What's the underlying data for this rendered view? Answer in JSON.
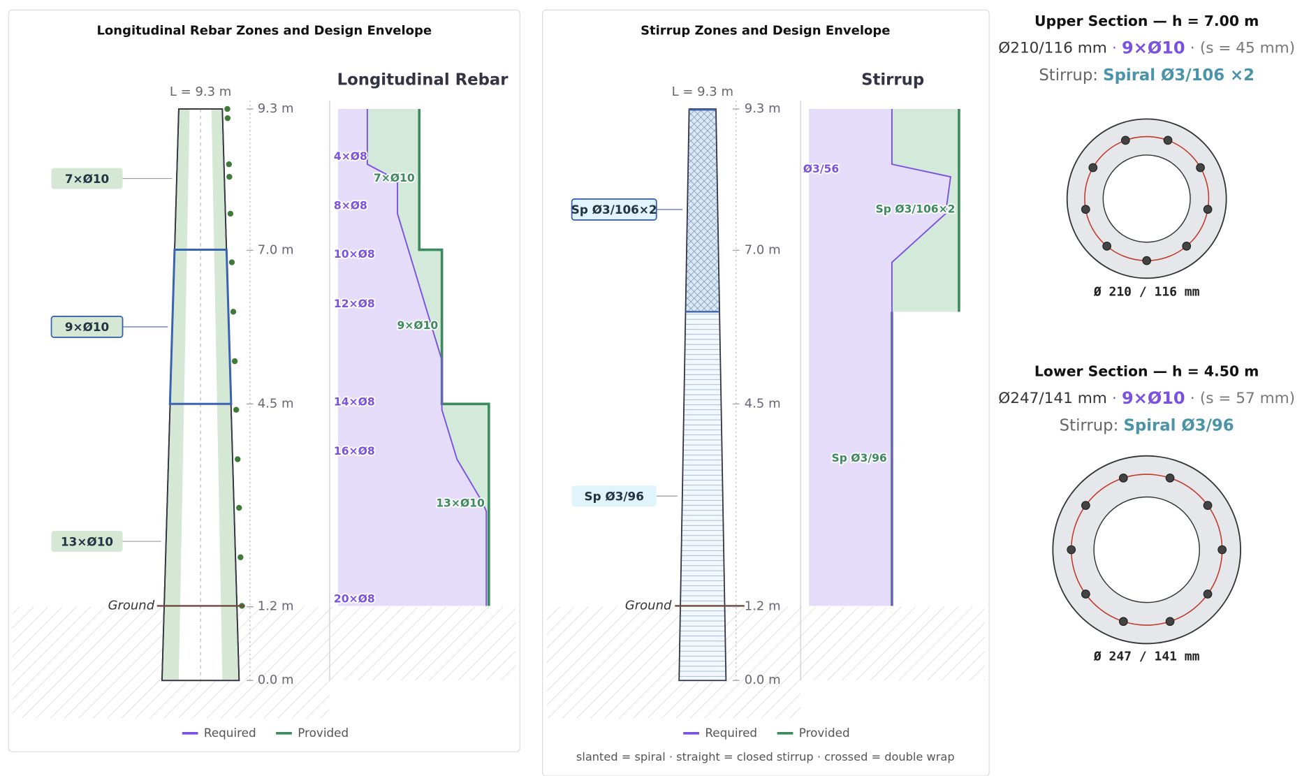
{
  "rebar_panel": {
    "title": "Longitudinal Rebar Zones and Design Envelope",
    "length_label": "L = 9.3 m",
    "height_ticks": [
      {
        "value": 9.3,
        "label": "9.3 m"
      },
      {
        "value": 7.0,
        "label": "7.0 m"
      },
      {
        "value": 4.5,
        "label": "4.5 m"
      },
      {
        "value": 1.2,
        "label": "1.2 m"
      },
      {
        "value": 0.0,
        "label": "0.0 m"
      }
    ],
    "zones": [
      "7×Ø10",
      "9×Ø10",
      "13×Ø10"
    ],
    "ground": "Ground",
    "envelope": {
      "title": "Longitudinal Rebar",
      "required_labels": [
        "4×Ø8",
        "8×Ø8",
        "10×Ø8",
        "12×Ø8",
        "14×Ø8",
        "16×Ø8",
        "20×Ø8"
      ],
      "provided_labels": [
        "7×Ø10",
        "9×Ø10",
        "13×Ø10"
      ]
    },
    "legend": [
      "Required",
      "Provided"
    ]
  },
  "stirrup_panel": {
    "title": "Stirrup Zones and Design Envelope",
    "length_label": "L = 9.3 m",
    "height_ticks": [
      {
        "value": 9.3,
        "label": "9.3 m"
      },
      {
        "value": 7.0,
        "label": "7.0 m"
      },
      {
        "value": 4.5,
        "label": "4.5 m"
      },
      {
        "value": 1.2,
        "label": "1.2 m"
      },
      {
        "value": 0.0,
        "label": "0.0 m"
      }
    ],
    "zones": [
      "Sp Ø3/106×2",
      "Sp Ø3/96"
    ],
    "ground": "Ground",
    "envelope": {
      "title": "Stirrup",
      "required_labels": [
        "Ø3/56"
      ],
      "provided_labels": [
        "Sp Ø3/106×2",
        "Sp Ø3/96"
      ]
    },
    "legend": [
      "Required",
      "Provided"
    ],
    "note": "slanted = spiral · straight = closed stirrup · crossed = double wrap"
  },
  "sections": [
    {
      "title": "Upper Section — h = 7.00 m",
      "dims": "Ø210/116 mm",
      "separator": "·",
      "bars": "9×Ø10",
      "spacing": "(s = 45 mm)",
      "stirrup_label": "Stirrup:",
      "stirrup": "Spiral Ø3/106 ×2",
      "caption": "Ø 210 / 116 mm"
    },
    {
      "title": "Lower Section — h = 4.50 m",
      "dims": "Ø247/141 mm",
      "separator": "·",
      "bars": "9×Ø10",
      "spacing": "(s = 57 mm)",
      "stirrup_label": "Stirrup:",
      "stirrup": "Spiral Ø3/96",
      "caption": "Ø 247 / 141 mm"
    }
  ]
}
